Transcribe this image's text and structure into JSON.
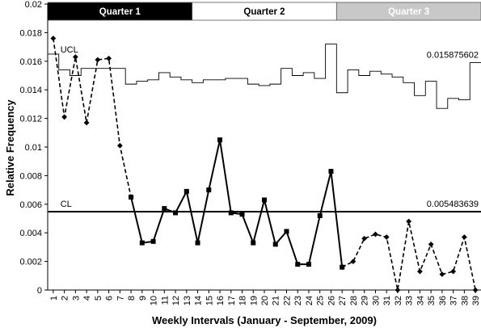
{
  "chart_data": {
    "type": "line",
    "xlabel": "Weekly Intervals (January - September, 2009)",
    "ylabel": "Relative Frequency",
    "ylim": [
      0,
      0.02
    ],
    "yticks": [
      "0",
      "0.002",
      "0.004",
      "0.006",
      "0.008",
      "0.01",
      "0.012",
      "0.014",
      "0.016",
      "0.018",
      "0.02"
    ],
    "x": [
      1,
      2,
      3,
      4,
      5,
      6,
      7,
      8,
      9,
      10,
      11,
      12,
      13,
      14,
      15,
      16,
      17,
      18,
      19,
      20,
      21,
      22,
      23,
      24,
      25,
      26,
      27,
      28,
      29,
      30,
      31,
      32,
      33,
      34,
      35,
      36,
      37,
      38,
      39
    ],
    "quarters": [
      {
        "label": "Quarter 1",
        "start": 1,
        "end": 13,
        "fill": "#000000",
        "text_color": "#ffffff"
      },
      {
        "label": "Quarter 2",
        "start": 14,
        "end": 26,
        "fill": "#ffffff",
        "text_color": "#000000"
      },
      {
        "label": "Quarter 3",
        "start": 27,
        "end": 39,
        "fill": "#c8c8c8",
        "text_color": "#ffffff"
      }
    ],
    "series": [
      {
        "x": [
          1,
          2,
          3,
          4,
          5,
          6,
          7,
          8
        ],
        "values": [
          0.0176,
          0.0121,
          0.0163,
          0.0117,
          0.0161,
          0.0162,
          0.0101,
          0.0065
        ],
        "style": "dashed",
        "marker": "diamond"
      },
      {
        "x": [
          8,
          9,
          10,
          11,
          12,
          13,
          14,
          15,
          16,
          17,
          18,
          19,
          20,
          21,
          22,
          23,
          24,
          25,
          26,
          27
        ],
        "values": [
          0.0065,
          0.0033,
          0.0034,
          0.0057,
          0.0054,
          0.0069,
          0.0033,
          0.007,
          0.0105,
          0.0054,
          0.0053,
          0.0033,
          0.0063,
          0.0032,
          0.0041,
          0.0018,
          0.0018,
          0.0052,
          0.0083,
          0.0016
        ],
        "style": "solid",
        "marker": "square"
      },
      {
        "x": [
          27,
          28,
          29,
          30,
          31,
          32,
          33,
          34,
          35,
          36,
          37,
          38,
          39
        ],
        "values": [
          0.0016,
          0.002,
          0.0036,
          0.0039,
          0.0037,
          0.0,
          0.0048,
          0.0013,
          0.0032,
          0.0011,
          0.0013,
          0.0037,
          0.0
        ],
        "style": "dashed",
        "marker": "diamond"
      }
    ],
    "ucl": {
      "label": "UCL",
      "value_label": "0.015875602",
      "steps": [
        0.0165,
        0.0154,
        0.015,
        0.0155,
        0.0155,
        0.0155,
        0.0155,
        0.0144,
        0.0146,
        0.0147,
        0.0152,
        0.0149,
        0.0147,
        0.0145,
        0.0147,
        0.0147,
        0.0148,
        0.0148,
        0.0144,
        0.0143,
        0.0144,
        0.0155,
        0.015,
        0.0152,
        0.0148,
        0.0172,
        0.0138,
        0.0154,
        0.015,
        0.0153,
        0.0151,
        0.0149,
        0.0145,
        0.0136,
        0.0146,
        0.0127,
        0.0134,
        0.0133,
        0.0159
      ]
    },
    "cl": {
      "label": "CL",
      "value": 0.005483639,
      "value_label": "0.005483639"
    },
    "grid": false,
    "legend": "none"
  }
}
